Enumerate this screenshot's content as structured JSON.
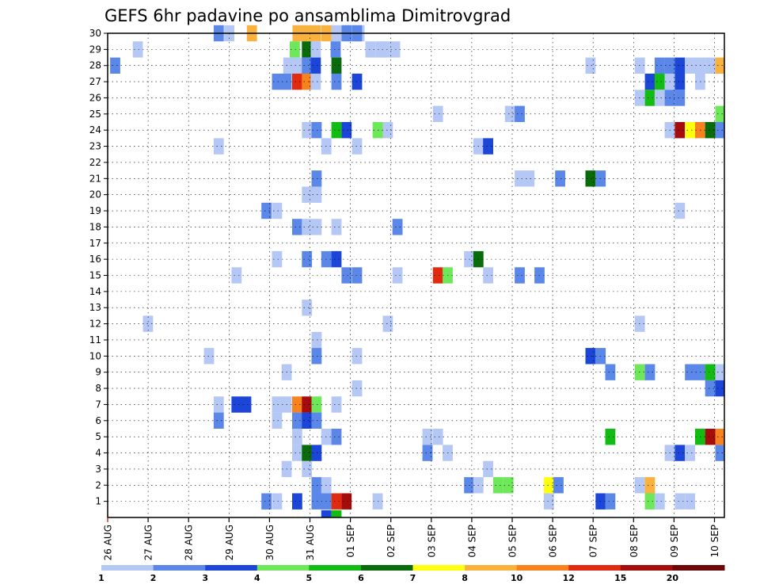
{
  "chart_data": {
    "type": "heatmap",
    "title": "GEFS 6hr padavine po ansamblima Dimitrovgrad",
    "x_tick_labels": [
      "26 AUG",
      "27 AUG",
      "28 AUG",
      "29 AUG",
      "30 AUG",
      "31 AUG",
      "01 SEP",
      "02 SEP",
      "03 SEP",
      "04 SEP",
      "05 SEP",
      "06 SEP",
      "07 SEP",
      "08 SEP",
      "09 SEP",
      "10 SEP"
    ],
    "y_tick_labels": [
      "1",
      "2",
      "3",
      "4",
      "5",
      "6",
      "7",
      "8",
      "9",
      "10",
      "11",
      "12",
      "13",
      "14",
      "15",
      "16",
      "17",
      "18",
      "19",
      "20",
      "21",
      "22",
      "23",
      "24",
      "25",
      "26",
      "27",
      "28",
      "29",
      "30"
    ],
    "x_range_days": [
      0,
      15.25
    ],
    "y_range": [
      0,
      30
    ],
    "grid": true,
    "colorbar": {
      "position": "bottom",
      "labels": [
        "1",
        "2",
        "3",
        "4",
        "5",
        "6",
        "7",
        "8",
        "10",
        "12",
        "15",
        "20"
      ],
      "colors": [
        "#b5c8f5",
        "#5b88e8",
        "#1c46d8",
        "#6ee85a",
        "#13bc13",
        "#0a6b0a",
        "#ffff10",
        "#f9b23d",
        "#f7821e",
        "#e02b10",
        "#a50c0c",
        "#6e0808"
      ]
    },
    "cells": [
      [
        6.1,
        30,
        "#b5c8f5"
      ],
      [
        5.88,
        30,
        "#b5c8f5"
      ],
      [
        5.53,
        30,
        "#b5c8f5"
      ],
      [
        5.28,
        30,
        "#f9b23d"
      ],
      [
        5.02,
        30,
        "#f9b23d"
      ],
      [
        4.8,
        30,
        "#f9b23d"
      ],
      [
        2.62,
        30,
        "#5b88e8"
      ],
      [
        2.88,
        30,
        "#b5c8f5"
      ],
      [
        3.44,
        30,
        "#f9b23d"
      ],
      [
        4.57,
        30,
        "#f9b23d"
      ],
      [
        5.78,
        30,
        "#5b88e8"
      ],
      [
        6.04,
        30,
        "#5b88e8"
      ],
      [
        6.73,
        29,
        "#b5c8f5"
      ],
      [
        6.98,
        29,
        "#b5c8f5"
      ],
      [
        0.62,
        29,
        "#b5c8f5"
      ],
      [
        6.37,
        29,
        "#b5c8f5"
      ],
      [
        6.62,
        29,
        "#b5c8f5"
      ],
      [
        4.5,
        29,
        "#6ee85a"
      ],
      [
        4.8,
        29,
        "#0a6b0a"
      ],
      [
        5.02,
        29,
        "#b5c8f5"
      ],
      [
        5.51,
        29,
        "#5b88e8"
      ],
      [
        0.06,
        28,
        "#5b88e8"
      ],
      [
        4.34,
        28,
        "#b5c8f5"
      ],
      [
        4.56,
        28,
        "#b5c8f5"
      ],
      [
        4.8,
        28,
        "#5b88e8"
      ],
      [
        5.02,
        28,
        "#1c46d8"
      ],
      [
        5.53,
        28,
        "#0a6b0a"
      ],
      [
        11.81,
        28,
        "#b5c8f5"
      ],
      [
        13.03,
        28,
        "#b5c8f5"
      ],
      [
        13.52,
        28,
        "#5b88e8"
      ],
      [
        13.77,
        28,
        "#5b88e8"
      ],
      [
        14.02,
        28,
        "#1c46d8"
      ],
      [
        14.27,
        28,
        "#b5c8f5"
      ],
      [
        14.52,
        28,
        "#b5c8f5"
      ],
      [
        14.77,
        28,
        "#b5c8f5"
      ],
      [
        15.02,
        28,
        "#f9b23d"
      ],
      [
        4.06,
        27,
        "#5b88e8"
      ],
      [
        4.3,
        27,
        "#5b88e8"
      ],
      [
        4.56,
        27,
        "#e02b10"
      ],
      [
        4.8,
        27,
        "#f7821e"
      ],
      [
        5.02,
        27,
        "#b5c8f5"
      ],
      [
        5.53,
        27,
        "#5b88e8"
      ],
      [
        6.04,
        27,
        "#1c46d8"
      ],
      [
        13.28,
        27,
        "#1c46d8"
      ],
      [
        13.52,
        27,
        "#13bc13"
      ],
      [
        13.77,
        27,
        "#b5c8f5"
      ],
      [
        14.02,
        27,
        "#1c46d8"
      ],
      [
        14.52,
        27,
        "#b5c8f5"
      ],
      [
        13.03,
        26,
        "#b5c8f5"
      ],
      [
        13.28,
        26,
        "#13bc13"
      ],
      [
        13.52,
        26,
        "#b5c8f5"
      ],
      [
        13.77,
        26,
        "#5b88e8"
      ],
      [
        14.02,
        26,
        "#5b88e8"
      ],
      [
        8.04,
        25,
        "#b5c8f5"
      ],
      [
        9.82,
        25,
        "#b5c8f5"
      ],
      [
        10.06,
        25,
        "#5b88e8"
      ],
      [
        15.02,
        25,
        "#6ee85a"
      ],
      [
        4.8,
        24,
        "#b5c8f5"
      ],
      [
        5.04,
        24,
        "#5b88e8"
      ],
      [
        5.53,
        24,
        "#13bc13"
      ],
      [
        5.78,
        24,
        "#1c46d8"
      ],
      [
        6.55,
        24,
        "#6ee85a"
      ],
      [
        6.8,
        24,
        "#b5c8f5"
      ],
      [
        13.77,
        24,
        "#b5c8f5"
      ],
      [
        14.02,
        24,
        "#a50c0c"
      ],
      [
        14.27,
        24,
        "#ffff10"
      ],
      [
        14.52,
        24,
        "#f7821e"
      ],
      [
        14.77,
        24,
        "#0a6b0a"
      ],
      [
        15.02,
        24,
        "#5b88e8"
      ],
      [
        15.27,
        24,
        "#b5c8f5"
      ],
      [
        2.62,
        23,
        "#b5c8f5"
      ],
      [
        5.28,
        23,
        "#b5c8f5"
      ],
      [
        6.04,
        23,
        "#b5c8f5"
      ],
      [
        9.04,
        23,
        "#b5c8f5"
      ],
      [
        9.28,
        23,
        "#1c46d8"
      ],
      [
        5.04,
        21,
        "#5b88e8"
      ],
      [
        10.06,
        21,
        "#b5c8f5"
      ],
      [
        10.3,
        21,
        "#b5c8f5"
      ],
      [
        11.06,
        21,
        "#5b88e8"
      ],
      [
        11.81,
        21,
        "#0a6b0a"
      ],
      [
        12.06,
        21,
        "#5b88e8"
      ],
      [
        4.8,
        20,
        "#b5c8f5"
      ],
      [
        5.04,
        20,
        "#b5c8f5"
      ],
      [
        3.8,
        19,
        "#5b88e8"
      ],
      [
        4.06,
        19,
        "#b5c8f5"
      ],
      [
        14.02,
        19,
        "#b5c8f5"
      ],
      [
        4.56,
        18,
        "#5b88e8"
      ],
      [
        4.8,
        18,
        "#b5c8f5"
      ],
      [
        5.04,
        18,
        "#b5c8f5"
      ],
      [
        5.53,
        18,
        "#b5c8f5"
      ],
      [
        7.04,
        18,
        "#5b88e8"
      ],
      [
        4.06,
        16,
        "#b5c8f5"
      ],
      [
        4.8,
        16,
        "#5b88e8"
      ],
      [
        5.28,
        16,
        "#5b88e8"
      ],
      [
        5.53,
        16,
        "#1c46d8"
      ],
      [
        8.81,
        16,
        "#b5c8f5"
      ],
      [
        9.04,
        16,
        "#0a6b0a"
      ],
      [
        3.06,
        15,
        "#b5c8f5"
      ],
      [
        5.78,
        15,
        "#5b88e8"
      ],
      [
        6.04,
        15,
        "#5b88e8"
      ],
      [
        7.04,
        15,
        "#b5c8f5"
      ],
      [
        8.04,
        15,
        "#e02b10"
      ],
      [
        8.28,
        15,
        "#6ee85a"
      ],
      [
        9.28,
        15,
        "#b5c8f5"
      ],
      [
        10.06,
        15,
        "#5b88e8"
      ],
      [
        10.55,
        15,
        "#5b88e8"
      ],
      [
        4.8,
        13,
        "#b5c8f5"
      ],
      [
        0.87,
        12,
        "#b5c8f5"
      ],
      [
        6.8,
        12,
        "#b5c8f5"
      ],
      [
        13.03,
        12,
        "#b5c8f5"
      ],
      [
        5.04,
        11,
        "#b5c8f5"
      ],
      [
        2.38,
        10,
        "#b5c8f5"
      ],
      [
        5.04,
        10,
        "#5b88e8"
      ],
      [
        6.04,
        10,
        "#b5c8f5"
      ],
      [
        11.81,
        10,
        "#1c46d8"
      ],
      [
        12.06,
        10,
        "#5b88e8"
      ],
      [
        4.3,
        9,
        "#b5c8f5"
      ],
      [
        12.3,
        9,
        "#5b88e8"
      ],
      [
        13.03,
        9,
        "#6ee85a"
      ],
      [
        13.28,
        9,
        "#5b88e8"
      ],
      [
        14.27,
        9,
        "#5b88e8"
      ],
      [
        14.52,
        9,
        "#5b88e8"
      ],
      [
        14.77,
        9,
        "#13bc13"
      ],
      [
        15.02,
        9,
        "#b5c8f5"
      ],
      [
        6.04,
        8,
        "#b5c8f5"
      ],
      [
        14.77,
        8,
        "#5b88e8"
      ],
      [
        15.02,
        8,
        "#1c46d8"
      ],
      [
        2.62,
        7,
        "#b5c8f5"
      ],
      [
        3.06,
        7,
        "#1c46d8"
      ],
      [
        3.3,
        7,
        "#1c46d8"
      ],
      [
        4.06,
        7,
        "#b5c8f5"
      ],
      [
        4.3,
        7,
        "#b5c8f5"
      ],
      [
        4.56,
        7,
        "#f7821e"
      ],
      [
        4.8,
        7,
        "#a50c0c"
      ],
      [
        5.04,
        7,
        "#6ee85a"
      ],
      [
        5.53,
        7,
        "#b5c8f5"
      ],
      [
        2.62,
        6,
        "#5b88e8"
      ],
      [
        4.06,
        6,
        "#b5c8f5"
      ],
      [
        4.56,
        6,
        "#5b88e8"
      ],
      [
        4.8,
        6,
        "#1c46d8"
      ],
      [
        5.04,
        6,
        "#5b88e8"
      ],
      [
        4.56,
        5,
        "#b5c8f5"
      ],
      [
        5.28,
        5,
        "#b5c8f5"
      ],
      [
        5.53,
        5,
        "#5b88e8"
      ],
      [
        7.78,
        5,
        "#b5c8f5"
      ],
      [
        8.04,
        5,
        "#b5c8f5"
      ],
      [
        12.3,
        5,
        "#13bc13"
      ],
      [
        14.52,
        5,
        "#13bc13"
      ],
      [
        14.77,
        5,
        "#a50c0c"
      ],
      [
        15.02,
        5,
        "#f7821e"
      ],
      [
        4.56,
        4,
        "#b5c8f5"
      ],
      [
        4.8,
        4,
        "#0a6b0a"
      ],
      [
        5.04,
        4,
        "#1c46d8"
      ],
      [
        7.78,
        4,
        "#5b88e8"
      ],
      [
        8.28,
        4,
        "#b5c8f5"
      ],
      [
        13.77,
        4,
        "#b5c8f5"
      ],
      [
        14.02,
        4,
        "#1c46d8"
      ],
      [
        14.27,
        4,
        "#b5c8f5"
      ],
      [
        15.02,
        4,
        "#5b88e8"
      ],
      [
        4.3,
        3,
        "#b5c8f5"
      ],
      [
        4.8,
        3,
        "#b5c8f5"
      ],
      [
        9.28,
        3,
        "#b5c8f5"
      ],
      [
        5.04,
        2,
        "#5b88e8"
      ],
      [
        5.28,
        2,
        "#b5c8f5"
      ],
      [
        8.81,
        2,
        "#5b88e8"
      ],
      [
        9.04,
        2,
        "#b5c8f5"
      ],
      [
        9.53,
        2,
        "#6ee85a"
      ],
      [
        9.78,
        2,
        "#6ee85a"
      ],
      [
        10.78,
        2,
        "#ffff10"
      ],
      [
        11.02,
        2,
        "#5b88e8"
      ],
      [
        13.03,
        2,
        "#b5c8f5"
      ],
      [
        13.28,
        2,
        "#f9b23d"
      ],
      [
        3.8,
        1,
        "#5b88e8"
      ],
      [
        4.06,
        1,
        "#b5c8f5"
      ],
      [
        4.56,
        1,
        "#1c46d8"
      ],
      [
        5.04,
        1,
        "#5b88e8"
      ],
      [
        5.28,
        1,
        "#5b88e8"
      ],
      [
        5.53,
        1,
        "#e02b10"
      ],
      [
        5.78,
        1,
        "#a50c0c"
      ],
      [
        6.55,
        1,
        "#b5c8f5"
      ],
      [
        10.78,
        1,
        "#b5c8f5"
      ],
      [
        12.06,
        1,
        "#1c46d8"
      ],
      [
        12.3,
        1,
        "#5b88e8"
      ],
      [
        13.28,
        1,
        "#6ee85a"
      ],
      [
        13.52,
        1,
        "#b5c8f5"
      ],
      [
        14.02,
        1,
        "#b5c8f5"
      ],
      [
        14.27,
        1,
        "#b5c8f5"
      ],
      [
        15.27,
        1,
        "#b5c8f5"
      ],
      [
        5.28,
        0.5,
        "#1c46d8"
      ],
      [
        5.53,
        0.5,
        "#13bc13"
      ]
    ]
  }
}
